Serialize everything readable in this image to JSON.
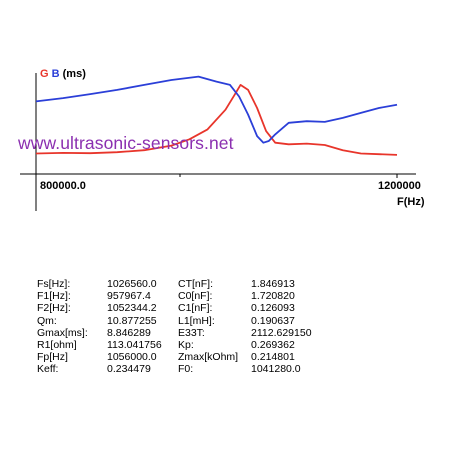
{
  "chart_title": {
    "g": "G",
    "b": "B",
    "unit": "(ms)"
  },
  "watermark": "www.ultrasonic-sensors.net",
  "axis": {
    "x_start": "800000.0",
    "x_end": "1200000",
    "x_label": "F(Hz)"
  },
  "colors": {
    "g_series": "#e8352b",
    "b_series": "#2b3fd8",
    "axis": "#000000",
    "watermark": "#8b2fb0"
  },
  "chart_data": {
    "type": "line",
    "x_range": [
      800000,
      1200000
    ],
    "series": [
      {
        "name": "G",
        "color": "#e8352b",
        "x": [
          800000,
          830000,
          860000,
          890000,
          920000,
          950000,
          970000,
          990000,
          1010000,
          1020000,
          1026560,
          1035000,
          1045000,
          1055000,
          1065000,
          1080000,
          1100000,
          1120000,
          1140000,
          1160000,
          1180000,
          1200000
        ],
        "y": [
          0.62,
          0.64,
          0.63,
          0.66,
          0.72,
          0.86,
          1.05,
          1.35,
          1.95,
          2.4,
          2.7,
          2.55,
          2.0,
          1.3,
          0.95,
          0.9,
          0.92,
          0.88,
          0.72,
          0.62,
          0.6,
          0.58
        ]
      },
      {
        "name": "B",
        "color": "#2b3fd8",
        "x": [
          800000,
          830000,
          860000,
          890000,
          920000,
          950000,
          980000,
          1000000,
          1015000,
          1025000,
          1035000,
          1045000,
          1052000,
          1058000,
          1065000,
          1080000,
          1100000,
          1120000,
          1140000,
          1160000,
          1180000,
          1200000
        ],
        "y": [
          2.2,
          2.3,
          2.42,
          2.55,
          2.7,
          2.85,
          2.95,
          2.8,
          2.7,
          2.35,
          1.8,
          1.15,
          0.95,
          1.0,
          1.2,
          1.55,
          1.6,
          1.58,
          1.7,
          1.85,
          2.0,
          2.1
        ]
      }
    ]
  },
  "params": {
    "left": [
      {
        "label": "Fs[Hz]:",
        "value": "1026560.0"
      },
      {
        "label": "F1[Hz]:",
        "value": "957967.4"
      },
      {
        "label": "F2[Hz]:",
        "value": "1052344.2"
      },
      {
        "label": "Qm:",
        "value": "10.877255"
      },
      {
        "label": "Gmax[ms]:",
        "value": "8.846289"
      },
      {
        "label": "R1[ohm]",
        "value": "113.041756"
      },
      {
        "label": "Fp[Hz]",
        "value": "1056000.0"
      },
      {
        "label": "Keff:",
        "value": "0.234479"
      }
    ],
    "right": [
      {
        "label": "CT[nF]:",
        "value": "1.846913"
      },
      {
        "label": "C0[nF]:",
        "value": "1.720820"
      },
      {
        "label": "C1[nF]:",
        "value": "0.126093"
      },
      {
        "label": "L1[mH]:",
        "value": "0.190637"
      },
      {
        "label": "E33T:",
        "value": "2112.629150"
      },
      {
        "label": "Kp:",
        "value": "0.269362"
      },
      {
        "label": "Zmax[kOhm]",
        "value": "0.214801"
      },
      {
        "label": "F0:",
        "value": "1041280.0"
      }
    ]
  }
}
